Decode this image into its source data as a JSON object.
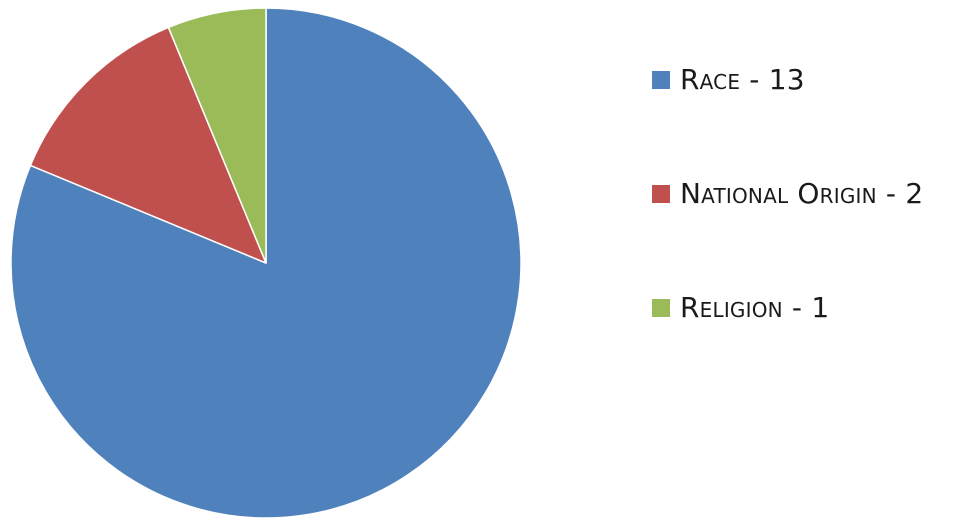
{
  "chart_data": {
    "type": "pie",
    "title": "",
    "categories": [
      "Race",
      "National Origin",
      "Religion"
    ],
    "values": [
      13,
      2,
      1
    ],
    "colors": [
      "#4f81bd",
      "#c0504d",
      "#9bbb59"
    ],
    "legend_position": "right",
    "legend": [
      {
        "label": "Race - 13",
        "color": "#4f81bd"
      },
      {
        "label": "National Origin - 2",
        "color": "#c0504d"
      },
      {
        "label": "Religion - 1",
        "color": "#9bbb59"
      }
    ]
  }
}
